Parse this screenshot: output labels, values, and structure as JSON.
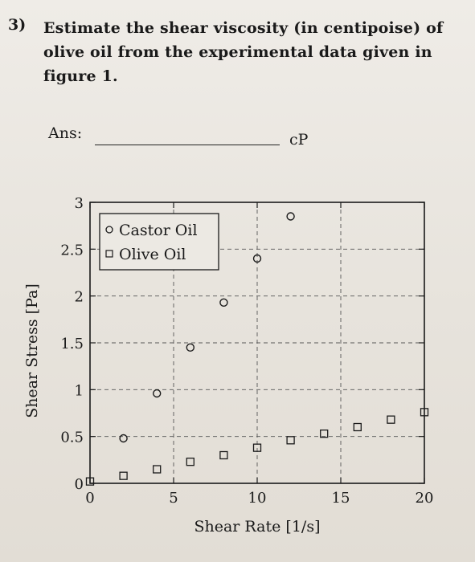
{
  "question": {
    "number": "3)",
    "lines": [
      "Estimate the shear viscosity (in centipoise) of",
      "olive oil from the experimental data given in",
      "figure 1."
    ]
  },
  "answer": {
    "label": "Ans:",
    "unit": "cP"
  },
  "chart_data": {
    "type": "scatter",
    "xlabel": "Shear Rate [1/s]",
    "ylabel": "Shear Stress [Pa]",
    "xlim": [
      0,
      20
    ],
    "ylim": [
      0,
      3
    ],
    "xticks": [
      "0",
      "5",
      "10",
      "15",
      "20"
    ],
    "yticks": [
      "0",
      "0.5",
      "1",
      "1.5",
      "2",
      "2.5",
      "3"
    ],
    "grid": true,
    "legend_position": "top-left",
    "series": [
      {
        "name": "Castor Oil",
        "marker": "circle",
        "x": [
          2,
          4,
          6,
          8,
          10,
          12
        ],
        "y": [
          0.48,
          0.96,
          1.45,
          1.93,
          2.4,
          2.85
        ]
      },
      {
        "name": "Olive Oil",
        "marker": "square",
        "x": [
          0,
          2,
          4,
          6,
          8,
          10,
          12,
          14,
          16,
          18,
          20
        ],
        "y": [
          0.02,
          0.08,
          0.15,
          0.23,
          0.3,
          0.38,
          0.46,
          0.53,
          0.6,
          0.68,
          0.76
        ]
      }
    ]
  }
}
